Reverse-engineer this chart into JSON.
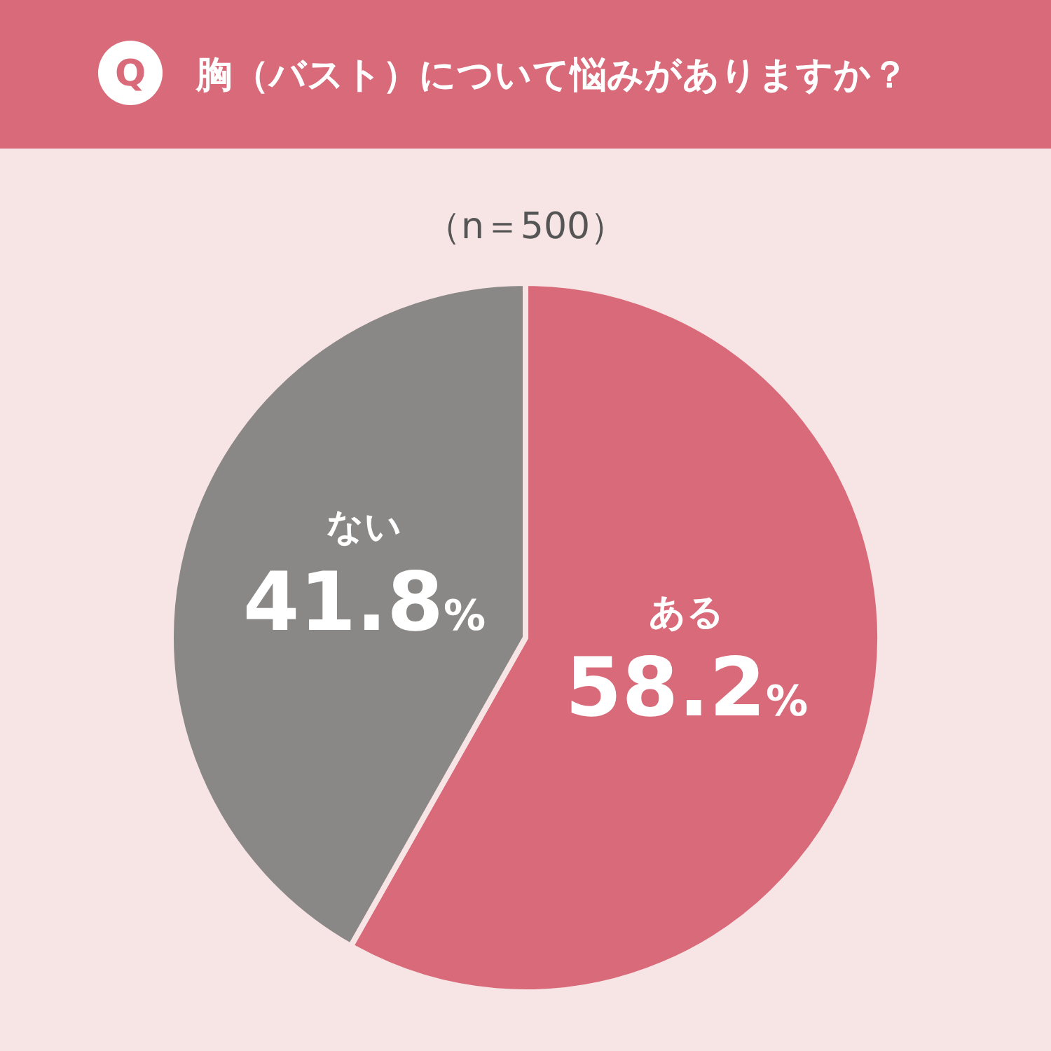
{
  "chart_data": {
    "type": "pie",
    "title": "胸（バスト）について悩みがありますか？",
    "subtitle": "（n＝500）",
    "annotations": [
      "Q"
    ],
    "categories": [
      "ある",
      "ない"
    ],
    "values": [
      58.2,
      41.8
    ],
    "colors": [
      "#d96a7a",
      "#8a8886"
    ],
    "value_labels": [
      "58.2%",
      "41.8%"
    ]
  }
}
